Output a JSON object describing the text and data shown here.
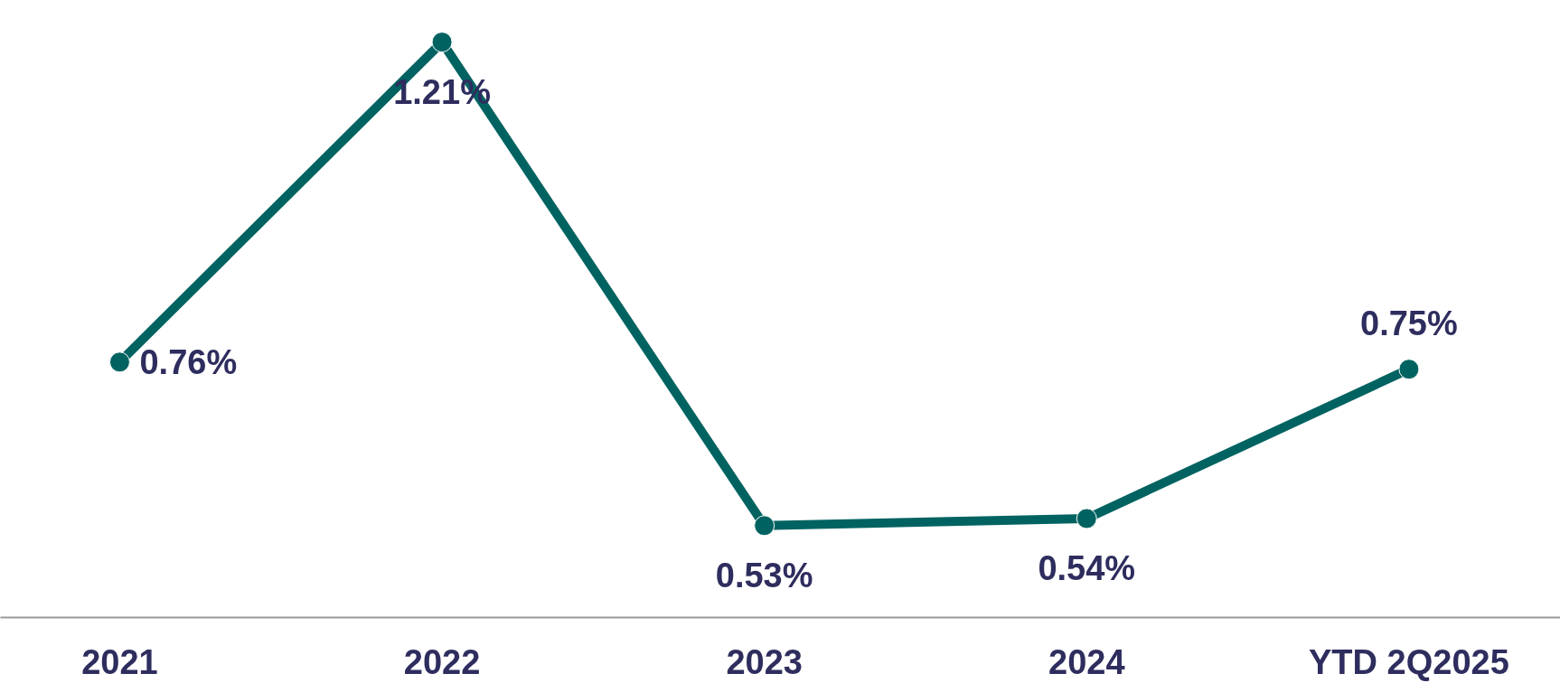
{
  "chart_data": {
    "type": "line",
    "categories": [
      "2021",
      "2022",
      "2023",
      "2024",
      "YTD 2Q2025"
    ],
    "series": [
      {
        "color": "#006361",
        "values": [
          0.76,
          1.21,
          0.53,
          0.54,
          0.75
        ],
        "value_labels": [
          "0.76%",
          "1.21%",
          "0.53%",
          "0.54%",
          "0.75%"
        ]
      }
    ],
    "marker": "circle",
    "grid": false
  }
}
